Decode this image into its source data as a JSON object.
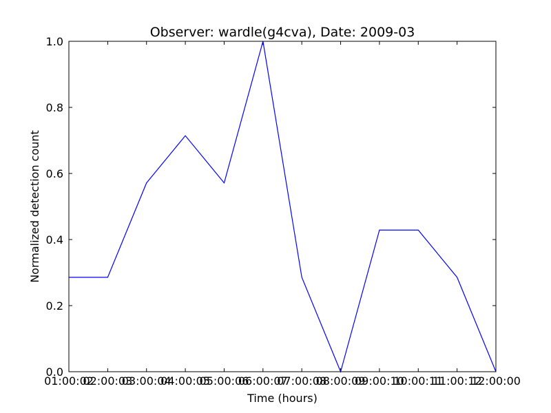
{
  "chart_data": {
    "type": "line",
    "title": "Observer: wardle(g4cva), Date: 2009-03",
    "xlabel": "Time (hours)",
    "ylabel": "Normalized detection count",
    "categories": [
      "01:00:00",
      "02:00:00",
      "03:00:00",
      "04:00:00",
      "05:00:00",
      "06:00:00",
      "07:00:00",
      "08:00:00",
      "09:00:00",
      "10:00:00",
      "11:00:00",
      "12:00:00"
    ],
    "x_tick_labels": [
      "01:00:02",
      "02:00:03",
      "03:00:04",
      "04:00:05",
      "05:00:06",
      "06:00:07",
      "07:00:08",
      "08:00:09",
      "09:00:10",
      "10:00:11",
      "11:00:12",
      "12:00:00"
    ],
    "series": [
      {
        "values": [
          0.2857,
          0.2857,
          0.5714,
          0.7143,
          0.5714,
          1.0,
          0.2857,
          0.0,
          0.4286,
          0.4286,
          0.2857,
          0.0
        ],
        "color": "#0000ff"
      }
    ],
    "ylim": [
      0.0,
      1.0
    ],
    "y_ticks": [
      "0.0",
      "0.2",
      "0.4",
      "0.6",
      "0.8",
      "1.0"
    ],
    "y_tick_values": [
      0.0,
      0.2,
      0.4,
      0.6,
      0.8,
      1.0
    ],
    "grid": false,
    "legend": "none"
  }
}
